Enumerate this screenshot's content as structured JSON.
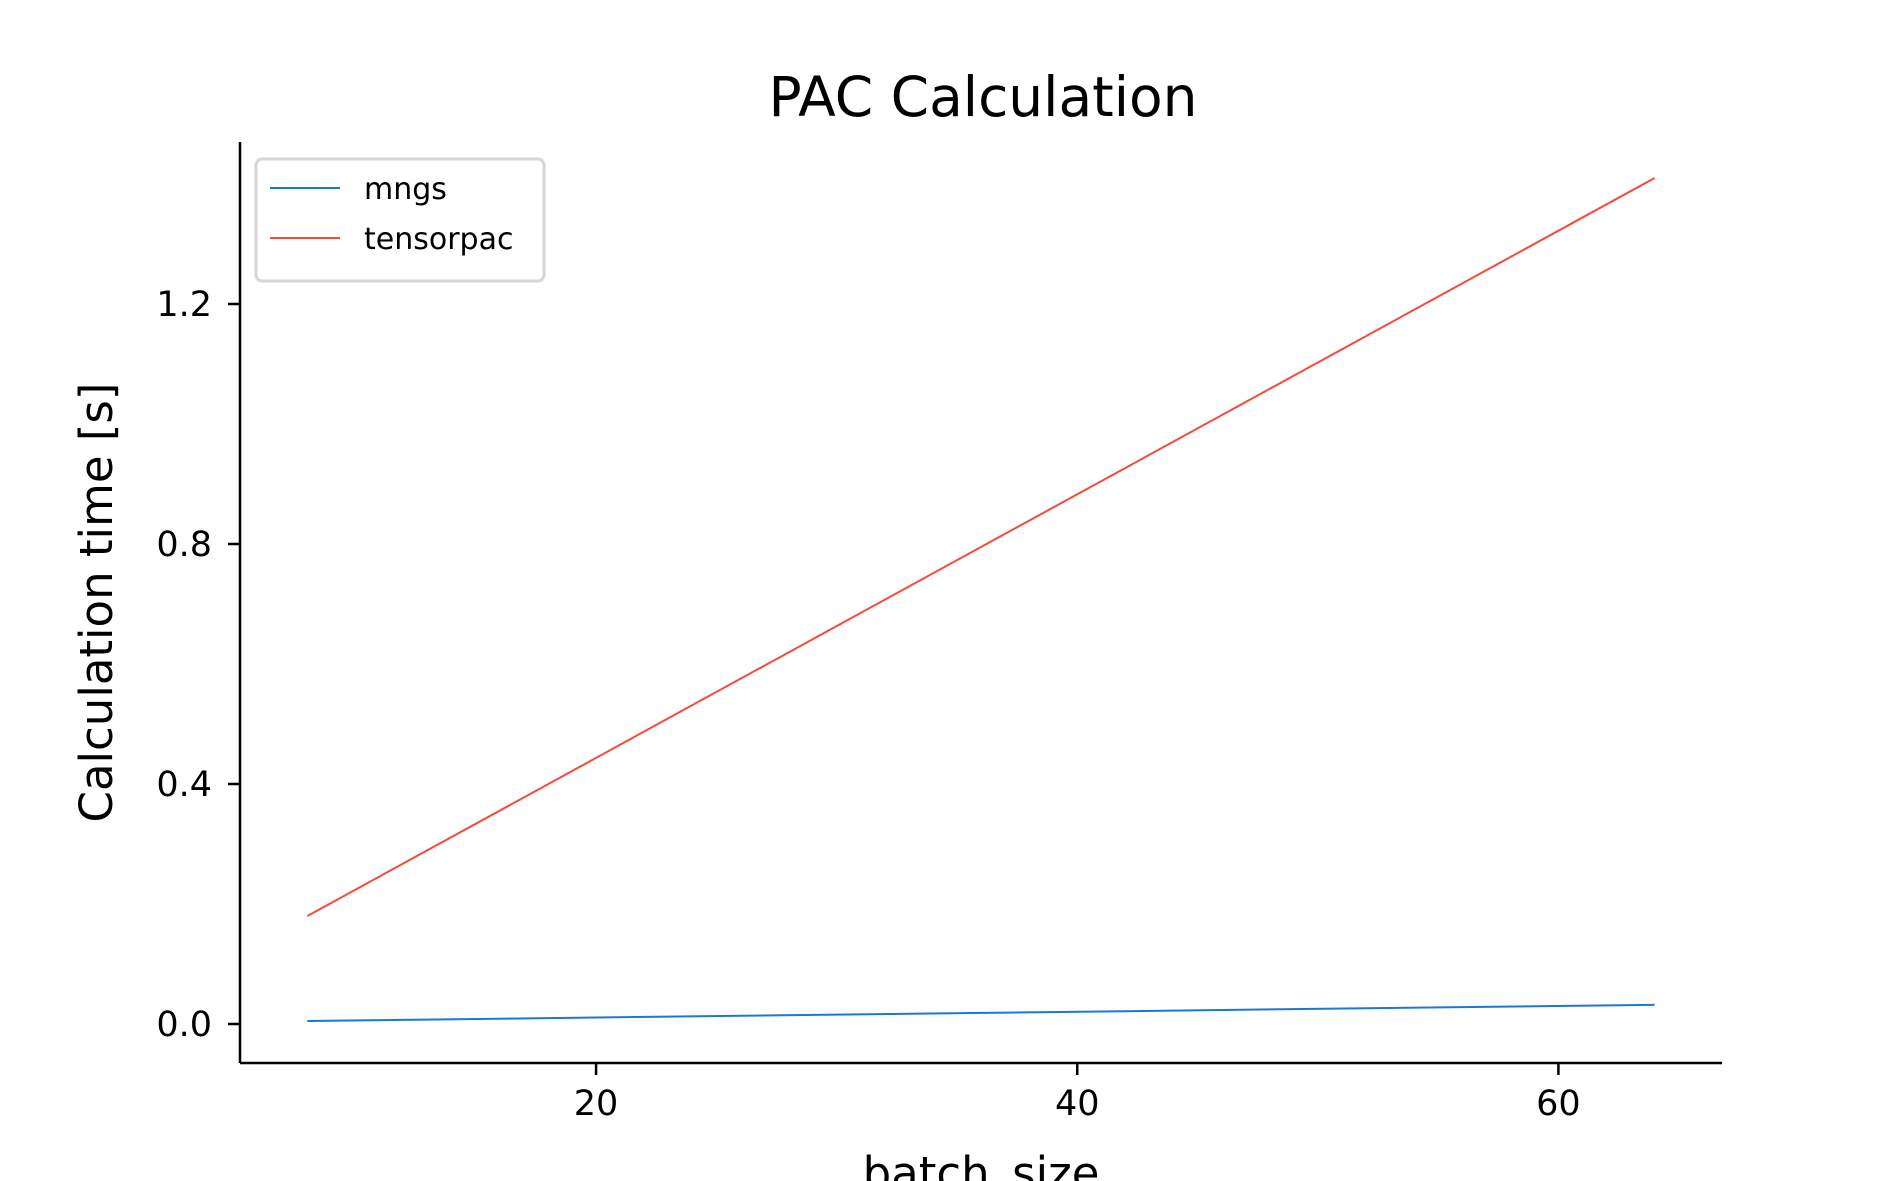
{
  "chart_data": {
    "type": "line",
    "title": "PAC Calculation",
    "xlabel": "batch_size",
    "ylabel": "Calculation time [s]",
    "xlim": [
      5.2,
      66.8
    ],
    "ylim": [
      -0.065,
      1.47
    ],
    "xticks": [
      20,
      40,
      60
    ],
    "yticks": [
      0.0,
      0.4,
      0.8,
      1.2
    ],
    "xtick_labels": [
      "20",
      "40",
      "60"
    ],
    "ytick_labels": [
      "0.0",
      "0.4",
      "0.8",
      "1.2"
    ],
    "grid": false,
    "legend_position": "upper-left",
    "spines": [
      "left",
      "bottom"
    ],
    "series": [
      {
        "name": "mngs",
        "color": "#1f77d4",
        "x": [
          8,
          64
        ],
        "y": [
          0.005,
          0.032
        ]
      },
      {
        "name": "tensorpac",
        "color": "#f54b3a",
        "x": [
          8,
          64
        ],
        "y": [
          0.18,
          1.41
        ]
      }
    ]
  }
}
